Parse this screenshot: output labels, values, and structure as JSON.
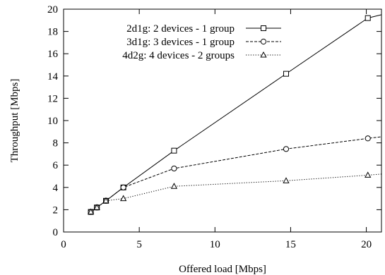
{
  "chart_data": {
    "type": "line",
    "xlabel": "Offered load [Mbps]",
    "ylabel": "Throughput [Mbps]",
    "xlim": [
      0,
      21
    ],
    "ylim": [
      0,
      20
    ],
    "xticks": [
      0,
      5,
      10,
      15,
      20
    ],
    "yticks": [
      0,
      2,
      4,
      6,
      8,
      10,
      12,
      14,
      16,
      18,
      20
    ],
    "grid": false,
    "legend_position": "top-left",
    "series": [
      {
        "name": "2d1g: 2 devices - 1 group",
        "marker": "square",
        "line_style": "solid",
        "points": [
          [
            1.8,
            1.8
          ],
          [
            2.2,
            2.2
          ],
          [
            2.8,
            2.8
          ],
          [
            3.95,
            4.0
          ],
          [
            7.3,
            7.3
          ],
          [
            14.7,
            14.2
          ],
          [
            20.1,
            19.2
          ]
        ],
        "extends_to": [
          21,
          19.5
        ]
      },
      {
        "name": "3d1g: 3 devices - 1 group",
        "marker": "circle",
        "line_style": "dashed",
        "points": [
          [
            1.8,
            1.8
          ],
          [
            2.2,
            2.2
          ],
          [
            2.8,
            2.8
          ],
          [
            3.95,
            4.0
          ],
          [
            7.3,
            5.7
          ],
          [
            14.7,
            7.45
          ],
          [
            20.1,
            8.4
          ]
        ],
        "extends_to": [
          21,
          8.55
        ]
      },
      {
        "name": "4d2g: 4 devices - 2 groups",
        "marker": "triangle",
        "line_style": "dotted",
        "points": [
          [
            1.8,
            1.8
          ],
          [
            2.2,
            2.2
          ],
          [
            2.8,
            2.8
          ],
          [
            3.95,
            3.0
          ],
          [
            7.3,
            4.1
          ],
          [
            14.7,
            4.6
          ],
          [
            20.1,
            5.1
          ]
        ],
        "extends_to": [
          21,
          5.2
        ]
      }
    ]
  }
}
